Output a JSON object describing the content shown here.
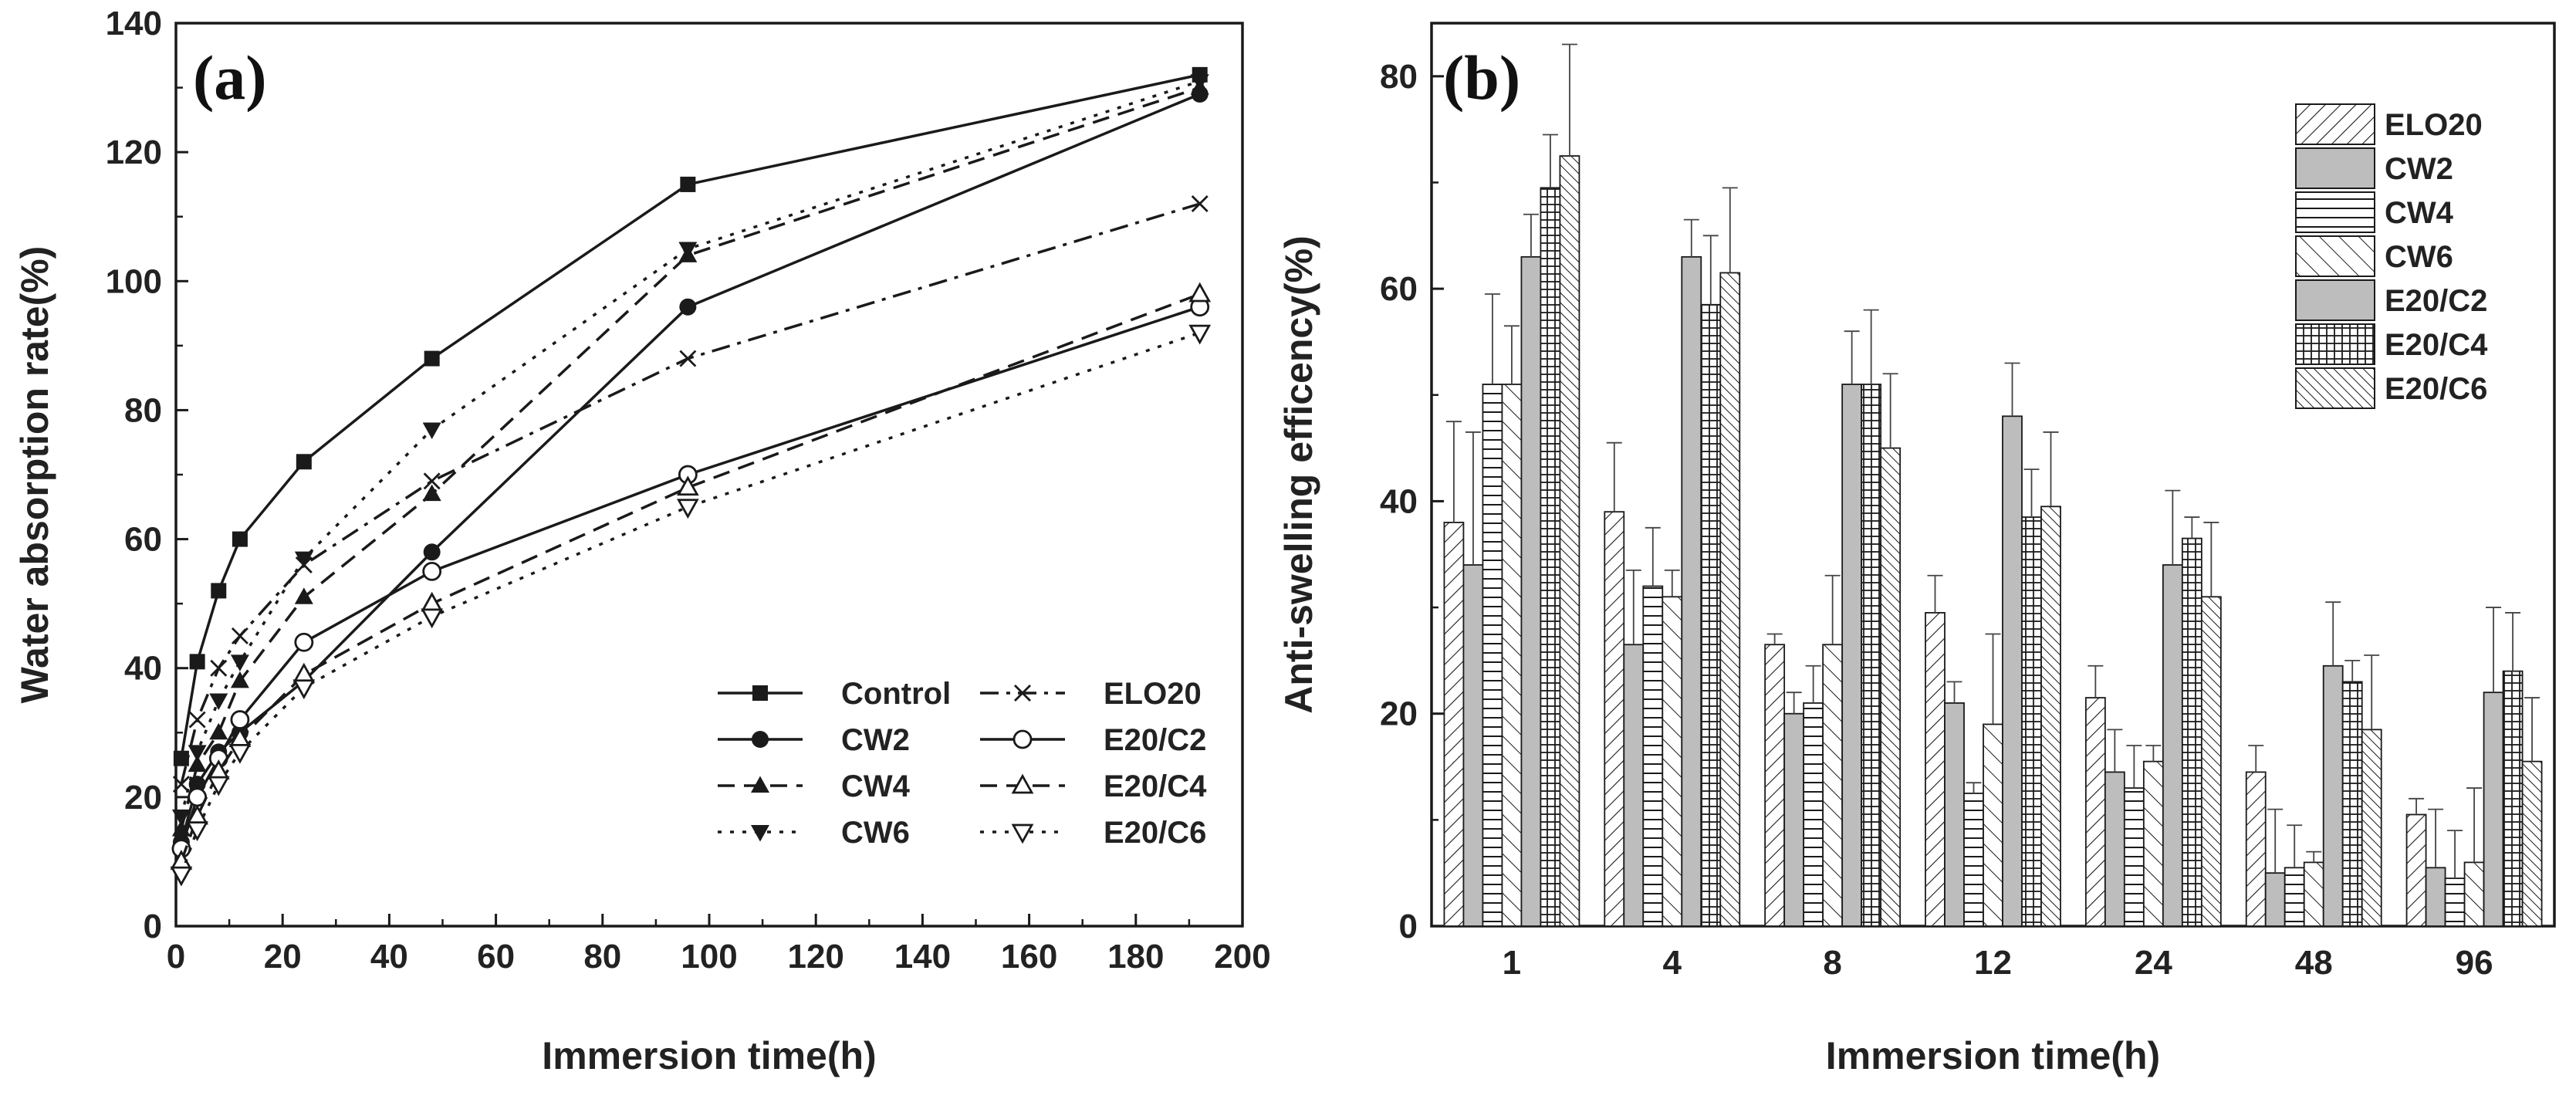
{
  "colors": {
    "ink": "#1a1a1a",
    "bar_gray": "#bdbdbd",
    "background": "#ffffff"
  },
  "chart_data": [
    {
      "type": "line",
      "panel_label": "(a)",
      "xlabel": "Immersion time(h)",
      "ylabel": "Water absorption rate(%)",
      "xlim": [
        0,
        200
      ],
      "ylim": [
        0,
        140
      ],
      "xticks": [
        "0",
        "20",
        "40",
        "60",
        "80",
        "100",
        "120",
        "140",
        "160",
        "180",
        "200"
      ],
      "yticks": [
        "0",
        "20",
        "40",
        "60",
        "80",
        "100",
        "120",
        "140"
      ],
      "x": [
        1,
        4,
        8,
        12,
        24,
        48,
        96,
        192
      ],
      "legend_position": "bottom-right",
      "series": [
        {
          "name": "Control",
          "marker": "square",
          "dash": "solid",
          "values": [
            26,
            41,
            52,
            60,
            72,
            88,
            115,
            132
          ]
        },
        {
          "name": "CW2",
          "marker": "circle",
          "dash": "solid",
          "values": [
            13,
            22,
            27,
            30,
            38,
            58,
            96,
            129
          ]
        },
        {
          "name": "CW4",
          "marker": "triangle-up",
          "dash": "dash",
          "values": [
            15,
            25,
            30,
            38,
            51,
            67,
            104,
            130
          ]
        },
        {
          "name": "CW6",
          "marker": "triangle-down",
          "dash": "dot",
          "values": [
            17,
            27,
            35,
            41,
            57,
            77,
            105,
            131
          ]
        },
        {
          "name": "ELO20",
          "marker": "x",
          "dash": "dashdot",
          "values": [
            22,
            32,
            40,
            45,
            56,
            69,
            88,
            112
          ]
        },
        {
          "name": "E20/C2",
          "marker": "open-circle",
          "dash": "solid",
          "values": [
            12,
            20,
            26,
            32,
            44,
            55,
            70,
            96
          ]
        },
        {
          "name": "E20/C4",
          "marker": "open-triangle-up",
          "dash": "dash",
          "values": [
            10,
            17,
            24,
            29,
            39,
            50,
            68,
            98
          ]
        },
        {
          "name": "E20/C6",
          "marker": "open-triangle-down",
          "dash": "dot",
          "values": [
            8,
            15,
            22,
            27,
            37,
            48,
            65,
            92
          ]
        }
      ]
    },
    {
      "type": "bar",
      "panel_label": "(b)",
      "xlabel": "Immersion time(h)",
      "ylabel": "Anti-swelling efficency(%)",
      "ylim": [
        0,
        85
      ],
      "yticks": [
        "0",
        "20",
        "40",
        "60",
        "80"
      ],
      "categories": [
        "1",
        "4",
        "8",
        "12",
        "24",
        "48",
        "96"
      ],
      "legend_position": "top-right",
      "series": [
        {
          "name": "ELO20",
          "pattern": "diag-right",
          "values": [
            38,
            39,
            26.5,
            29.5,
            21.5,
            14.5,
            10.5
          ],
          "errors": [
            9.5,
            6.5,
            1,
            3.5,
            3,
            2.5,
            1.5
          ]
        },
        {
          "name": "CW2",
          "pattern": "gray",
          "values": [
            34,
            26.5,
            20,
            21,
            14.5,
            5,
            5.5
          ],
          "errors": [
            12.5,
            7,
            2,
            2,
            4,
            6,
            5.5
          ]
        },
        {
          "name": "CW4",
          "pattern": "horizontal",
          "values": [
            51,
            32,
            21,
            12.5,
            13,
            5.5,
            4.5
          ],
          "errors": [
            8.5,
            5.5,
            3.5,
            1,
            4,
            4,
            4.5
          ]
        },
        {
          "name": "CW6",
          "pattern": "diag-left",
          "values": [
            51,
            31,
            26.5,
            19,
            15.5,
            6,
            6
          ],
          "errors": [
            5.5,
            2.5,
            6.5,
            8.5,
            1.5,
            1,
            7
          ]
        },
        {
          "name": "E20/C2",
          "pattern": "gray",
          "values": [
            63,
            63,
            51,
            48,
            34,
            24.5,
            22
          ],
          "errors": [
            4,
            3.5,
            5,
            5,
            7,
            6,
            8
          ]
        },
        {
          "name": "E20/C4",
          "pattern": "grid",
          "values": [
            69.5,
            58.5,
            51,
            38.5,
            36.5,
            23,
            24
          ],
          "errors": [
            5,
            6.5,
            7,
            4.5,
            2,
            2,
            5.5
          ]
        },
        {
          "name": "E20/C6",
          "pattern": "diag-dense",
          "values": [
            72.5,
            61.5,
            45,
            39.5,
            31,
            18.5,
            15.5
          ],
          "errors": [
            10.5,
            8,
            7,
            7,
            7,
            7,
            6
          ]
        }
      ]
    }
  ]
}
